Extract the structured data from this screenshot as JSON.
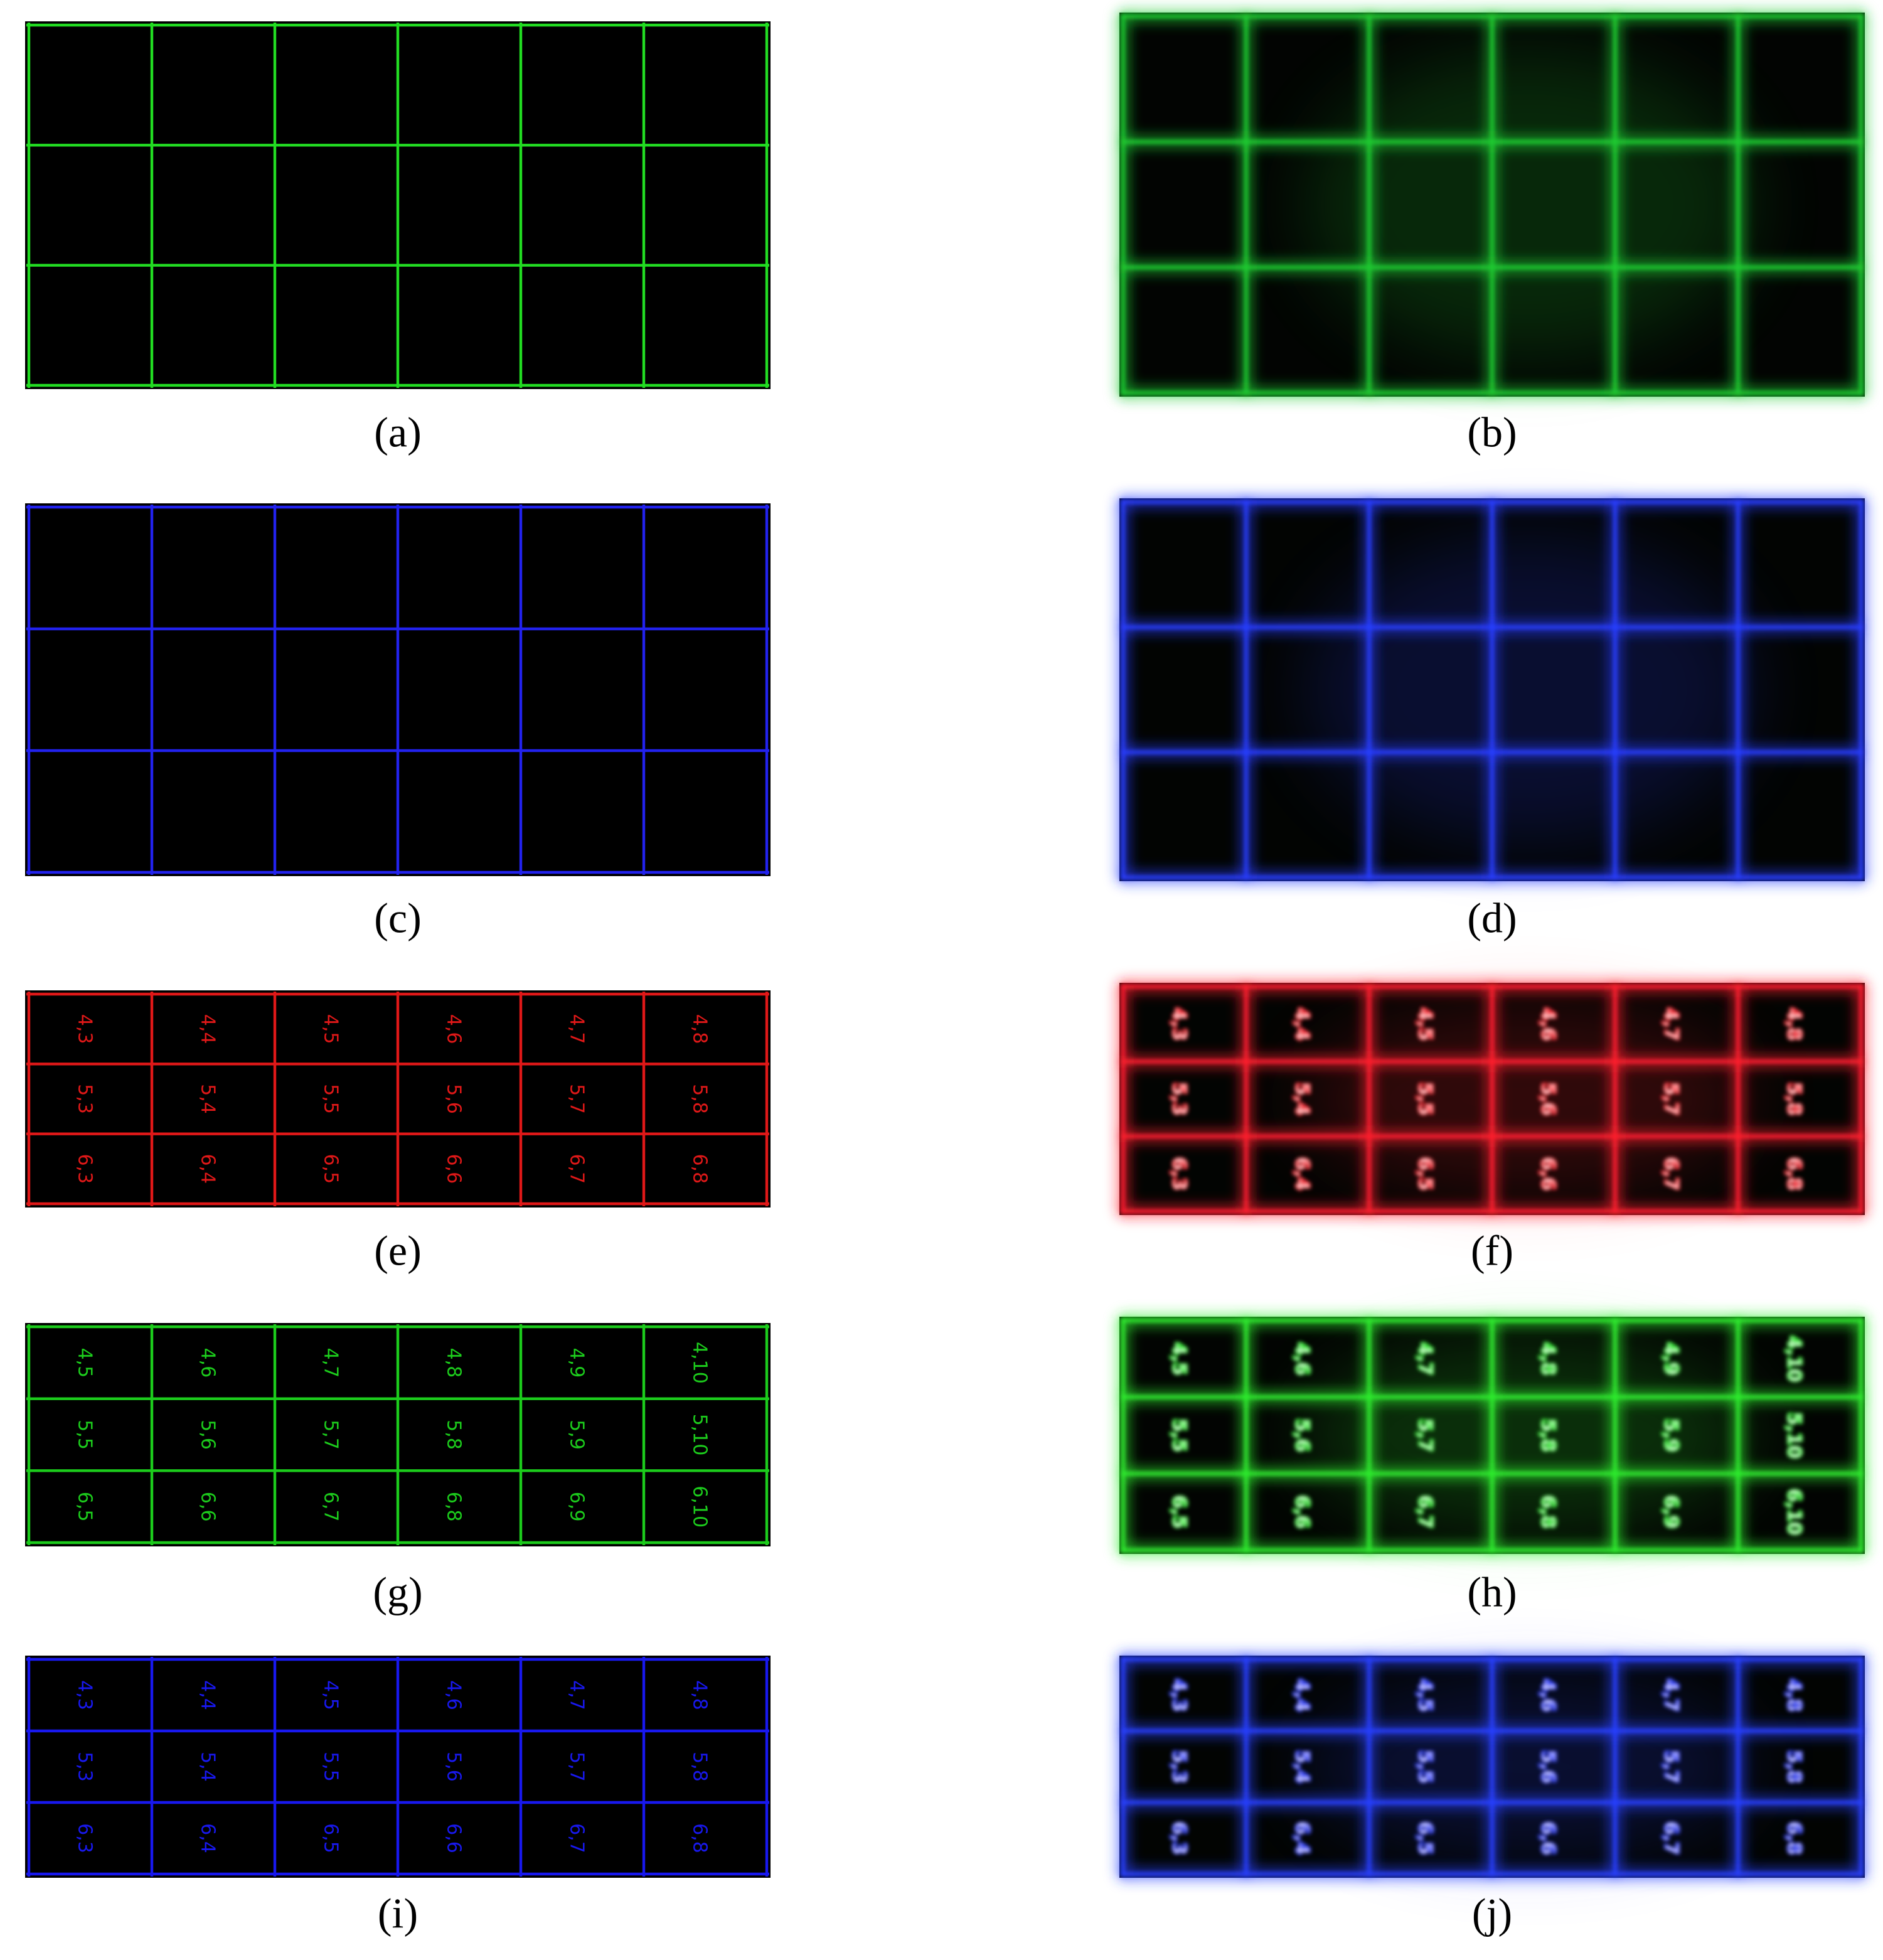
{
  "panels": [
    {
      "caption": "(a)"
    },
    {
      "caption": "(b)"
    },
    {
      "caption": "(c)"
    },
    {
      "caption": "(d)"
    },
    {
      "caption": "(e)",
      "labels": [
        [
          "4,3",
          "4,4",
          "4,5",
          "4,6",
          "4,7",
          "4,8"
        ],
        [
          "5,3",
          "5,4",
          "5,5",
          "5,6",
          "5,7",
          "5,8"
        ],
        [
          "6,3",
          "6,4",
          "6,5",
          "6,6",
          "6,7",
          "6,8"
        ]
      ]
    },
    {
      "caption": "(f)",
      "labels": [
        [
          "4,3",
          "4,4",
          "4,5",
          "4,6",
          "4,7",
          "4,8"
        ],
        [
          "5,3",
          "5,4",
          "5,5",
          "5,6",
          "5,7",
          "5,8"
        ],
        [
          "6,3",
          "6,4",
          "6,5",
          "6,6",
          "6,7",
          "6,8"
        ]
      ]
    },
    {
      "caption": "(g)",
      "labels": [
        [
          "4,5",
          "4,6",
          "4,7",
          "4,8",
          "4,9",
          "4,10"
        ],
        [
          "5,5",
          "5,6",
          "5,7",
          "5,8",
          "5,9",
          "5,10"
        ],
        [
          "6,5",
          "6,6",
          "6,7",
          "6,8",
          "6,9",
          "6,10"
        ]
      ]
    },
    {
      "caption": "(h)",
      "labels": [
        [
          "4,5",
          "4,6",
          "4,7",
          "4,8",
          "4,9",
          "4,10"
        ],
        [
          "5,5",
          "5,6",
          "5,7",
          "5,8",
          "5,9",
          "5,10"
        ],
        [
          "6,5",
          "6,6",
          "6,7",
          "6,8",
          "6,9",
          "6,10"
        ]
      ]
    },
    {
      "caption": "(i)",
      "labels": [
        [
          "4,3",
          "4,4",
          "4,5",
          "4,6",
          "4,7",
          "4,8"
        ],
        [
          "5,3",
          "5,4",
          "5,5",
          "5,6",
          "5,7",
          "5,8"
        ],
        [
          "6,3",
          "6,4",
          "6,5",
          "6,6",
          "6,7",
          "6,8"
        ]
      ]
    },
    {
      "caption": "(j)",
      "labels": [
        [
          "4,3",
          "4,4",
          "4,5",
          "4,6",
          "4,7",
          "4,8"
        ],
        [
          "5,3",
          "5,4",
          "5,5",
          "5,6",
          "5,7",
          "5,8"
        ],
        [
          "6,3",
          "6,4",
          "6,5",
          "6,6",
          "6,7",
          "6,8"
        ]
      ]
    }
  ]
}
